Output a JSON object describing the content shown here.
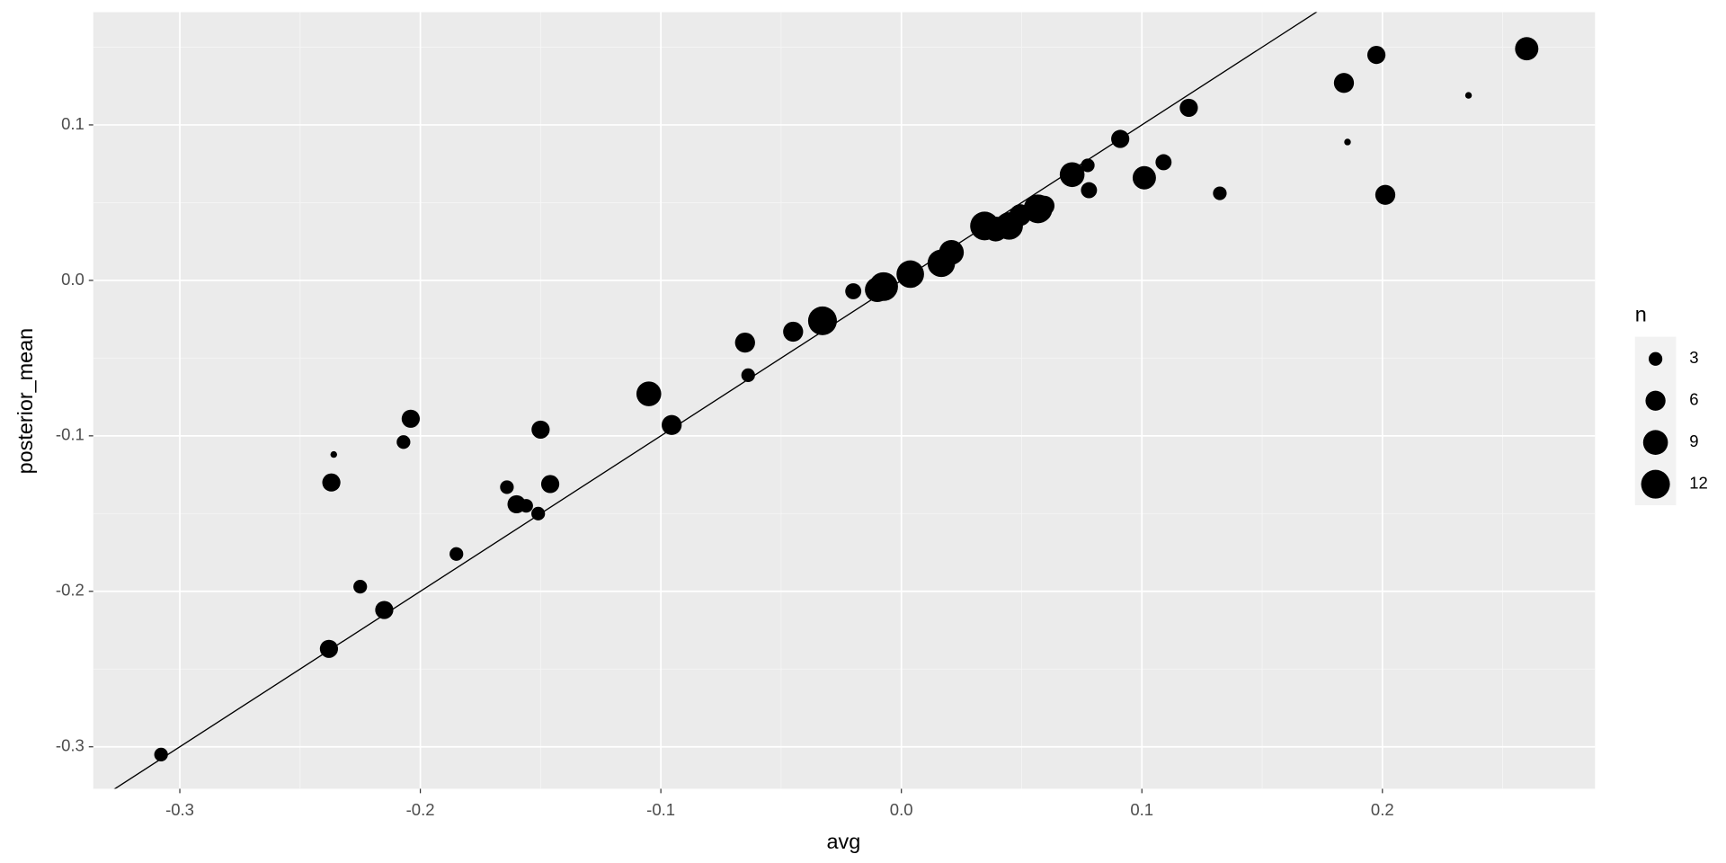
{
  "chart_data": {
    "type": "scatter",
    "x_label": "avg",
    "y_label": "posterior_mean",
    "xlim": [
      -0.336,
      0.2884
    ],
    "ylim": [
      -0.327,
      0.1725
    ],
    "xticks": [
      -0.3,
      -0.2,
      -0.1,
      {
        "value": 0,
        "label": "0.0"
      },
      0.1,
      0.2
    ],
    "yticks": [
      -0.3,
      -0.2,
      -0.1,
      {
        "value": 0,
        "label": "0.0"
      },
      0.1
    ],
    "grid": true,
    "color": "#000000",
    "reference_line": {
      "slope": 1,
      "intercept": 0
    },
    "x": [
      -0.3078,
      -0.238,
      -0.237,
      -0.236,
      -0.225,
      -0.215,
      -0.207,
      -0.204,
      -0.185,
      -0.164,
      -0.16,
      -0.156,
      -0.151,
      -0.15,
      -0.146,
      -0.105,
      -0.0955,
      -0.065,
      -0.0637,
      -0.045,
      -0.0328,
      -0.02,
      -0.01,
      -0.0074,
      0.0037,
      0.0166,
      0.0208,
      0.0346,
      0.0392,
      0.0448,
      0.0494,
      0.0568,
      0.0595,
      0.071,
      0.0775,
      0.078,
      0.091,
      0.101,
      0.109,
      0.1195,
      0.1324,
      0.184,
      0.1855,
      0.1975,
      0.2012,
      0.2358,
      0.26
    ],
    "y": [
      -0.305,
      -0.237,
      -0.13,
      -0.112,
      -0.197,
      -0.212,
      -0.104,
      -0.089,
      -0.176,
      -0.133,
      -0.144,
      -0.145,
      -0.15,
      -0.096,
      -0.131,
      -0.073,
      -0.093,
      -0.04,
      -0.061,
      -0.033,
      -0.026,
      -0.007,
      -0.006,
      -0.004,
      0.004,
      0.011,
      0.018,
      0.035,
      0.033,
      0.035,
      0.042,
      0.046,
      0.048,
      0.068,
      0.074,
      0.058,
      0.091,
      0.066,
      0.076,
      0.111,
      0.056,
      0.127,
      0.089,
      0.145,
      0.055,
      0.119,
      0.149
    ],
    "size": [
      3,
      5,
      5,
      1,
      3,
      5,
      3,
      5,
      3,
      3,
      5,
      3,
      3,
      5,
      5,
      9,
      6,
      6,
      3,
      6,
      12,
      4,
      9,
      12,
      11,
      11,
      9,
      12,
      9,
      11,
      7,
      12,
      6,
      9,
      3,
      4,
      5,
      8,
      4,
      5,
      3,
      6,
      1,
      5,
      6,
      1,
      8
    ],
    "size_legend": {
      "title": "n",
      "values": [
        3,
        6,
        9,
        12
      ]
    }
  }
}
